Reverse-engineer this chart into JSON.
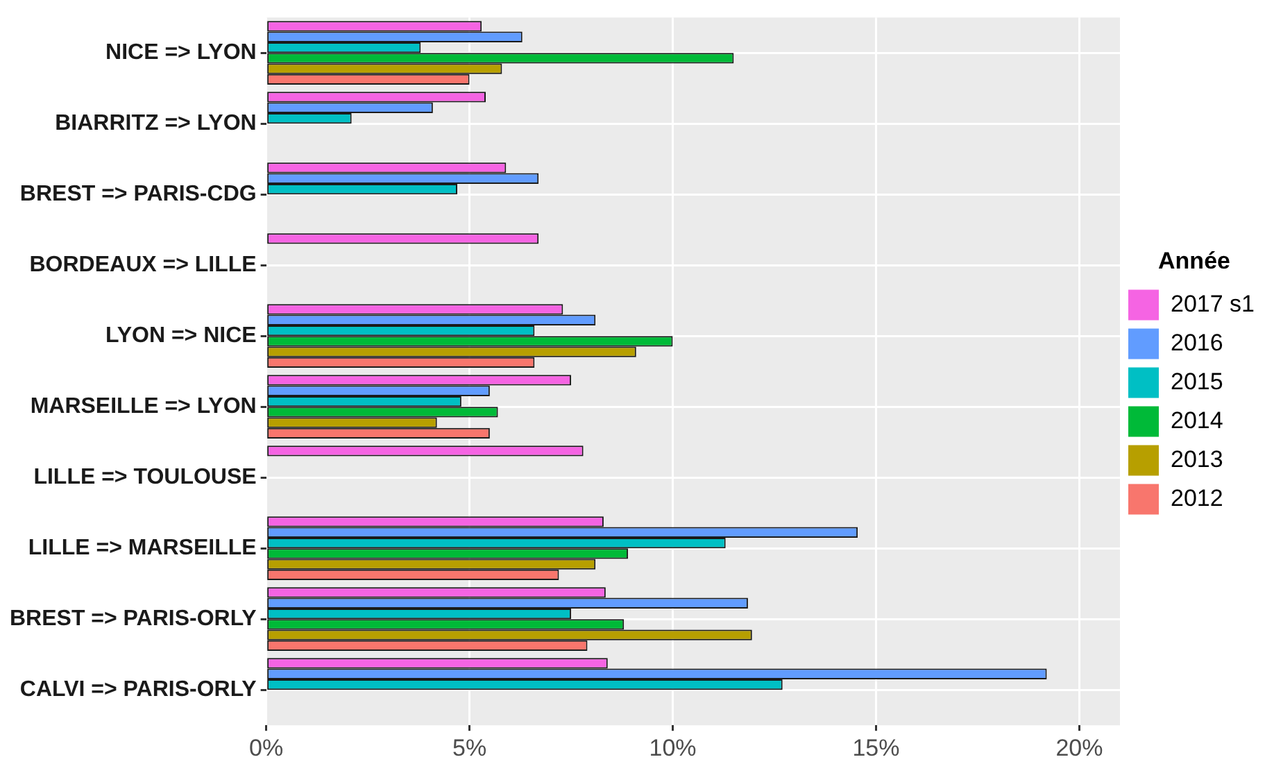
{
  "chart_data": {
    "type": "bar",
    "orientation": "horizontal",
    "legend_title": "Année",
    "legend": "right",
    "grid": true,
    "categories": [
      "NICE => LYON",
      "BIARRITZ => LYON",
      "BREST => PARIS-CDG",
      "BORDEAUX => LILLE",
      "LYON => NICE",
      "MARSEILLE => LYON",
      "LILLE => TOULOUSE",
      "LILLE => MARSEILLE",
      "BREST => PARIS-ORLY",
      "CALVI => PARIS-ORLY"
    ],
    "series": [
      {
        "name": "2017 s1",
        "color": "#f564e3",
        "values": [
          5.3,
          5.4,
          5.9,
          6.7,
          7.3,
          7.5,
          7.8,
          8.3,
          8.35,
          8.4
        ]
      },
      {
        "name": "2016",
        "color": "#619cff",
        "values": [
          6.3,
          4.1,
          6.7,
          null,
          8.1,
          5.5,
          null,
          14.55,
          11.85,
          19.2
        ]
      },
      {
        "name": "2015",
        "color": "#00bfc4",
        "values": [
          3.8,
          2.1,
          4.7,
          null,
          6.6,
          4.8,
          null,
          11.3,
          7.5,
          12.7
        ]
      },
      {
        "name": "2014",
        "color": "#00ba38",
        "values": [
          11.5,
          null,
          null,
          null,
          10.0,
          5.7,
          null,
          8.9,
          8.8,
          null
        ]
      },
      {
        "name": "2013",
        "color": "#b79f00",
        "values": [
          5.8,
          null,
          null,
          null,
          9.1,
          4.2,
          null,
          8.1,
          11.95,
          null
        ]
      },
      {
        "name": "2012",
        "color": "#f8766d",
        "values": [
          5.0,
          null,
          null,
          null,
          6.6,
          5.5,
          null,
          7.2,
          7.9,
          null
        ]
      }
    ],
    "xlim": [
      0,
      21
    ],
    "xticks": [
      {
        "value": 0,
        "label": "0%"
      },
      {
        "value": 5,
        "label": "5%"
      },
      {
        "value": 10,
        "label": "10%"
      },
      {
        "value": 15,
        "label": "15%"
      },
      {
        "value": 20,
        "label": "20%"
      }
    ]
  }
}
